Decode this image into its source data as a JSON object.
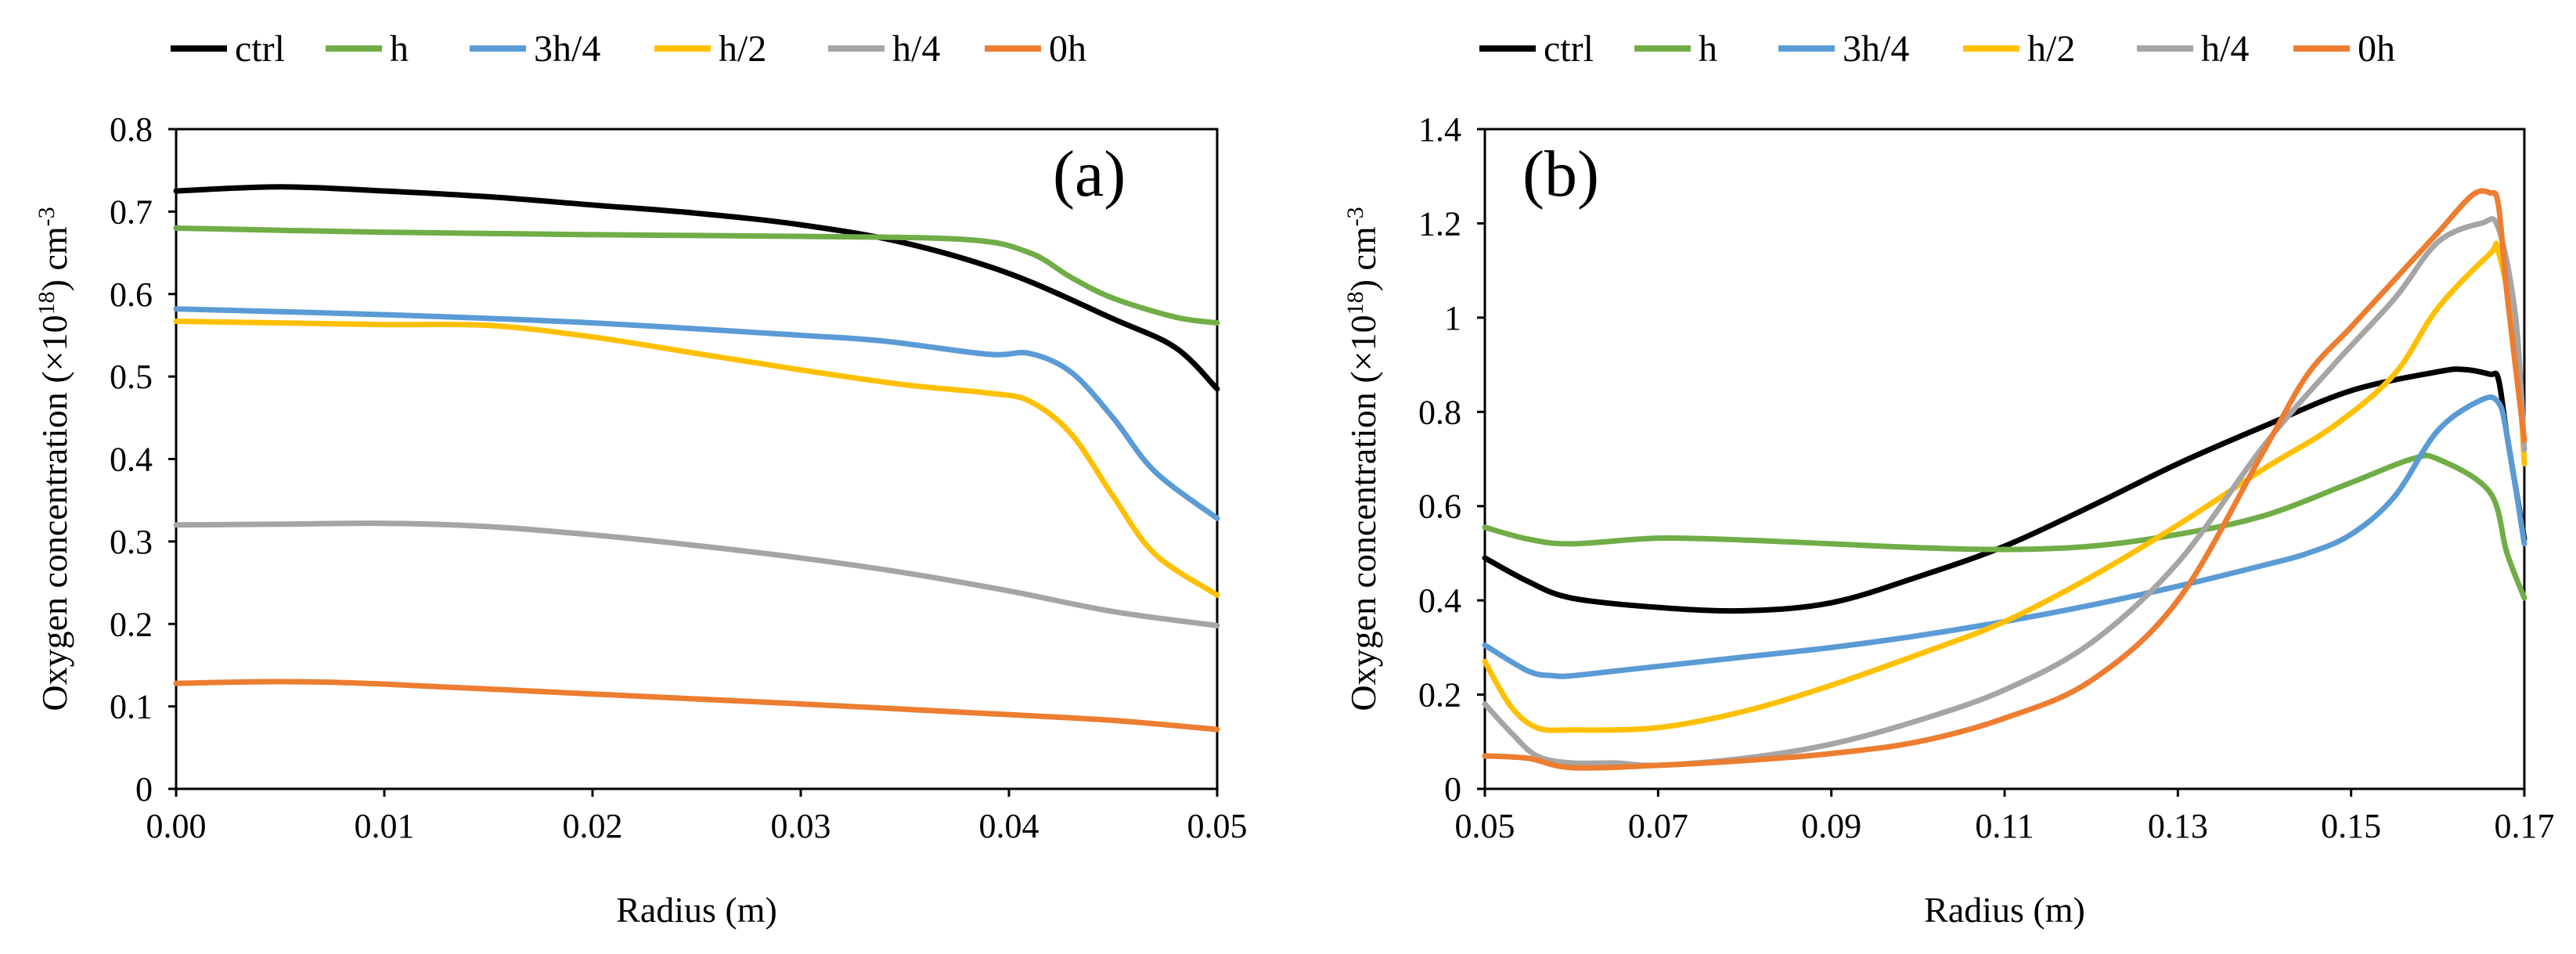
{
  "chart_data": [
    {
      "type": "line",
      "panel_label": "(a)",
      "xlabel": "Radius (m)",
      "ylabel_main": "Oxygen concentration (×10",
      "ylabel_sup": "18",
      "ylabel_rest": ") cm",
      "ylabel_unit_sup": "-3",
      "xlim": [
        0,
        0.05
      ],
      "ylim": [
        0,
        0.8
      ],
      "x_ticks": [
        0,
        0.01,
        0.02,
        0.03,
        0.04,
        0.05
      ],
      "x_tick_labels": [
        "0.00",
        "0.01",
        "0.02",
        "0.03",
        "0.04",
        "0.05"
      ],
      "y_ticks": [
        0,
        0.1,
        0.2,
        0.3,
        0.4,
        0.5,
        0.6,
        0.7,
        0.8
      ],
      "y_tick_labels": [
        "0",
        "0.1",
        "0.2",
        "0.3",
        "0.4",
        "0.5",
        "0.6",
        "0.7",
        "0.8"
      ],
      "legend_position": "top",
      "series": [
        {
          "name": "ctrl",
          "color": "#000000",
          "x": [
            0,
            0.005,
            0.01,
            0.015,
            0.02,
            0.025,
            0.03,
            0.035,
            0.04,
            0.045,
            0.048,
            0.05
          ],
          "y": [
            0.725,
            0.73,
            0.725,
            0.718,
            0.708,
            0.698,
            0.684,
            0.662,
            0.625,
            0.57,
            0.535,
            0.485
          ]
        },
        {
          "name": "h",
          "color": "#70AD47",
          "x": [
            0,
            0.01,
            0.02,
            0.03,
            0.038,
            0.041,
            0.043,
            0.045,
            0.048,
            0.05
          ],
          "y": [
            0.68,
            0.675,
            0.672,
            0.67,
            0.666,
            0.65,
            0.62,
            0.595,
            0.572,
            0.565
          ]
        },
        {
          "name": "3h/4",
          "color": "#5B9BD5",
          "x": [
            0,
            0.01,
            0.02,
            0.03,
            0.034,
            0.039,
            0.041,
            0.043,
            0.045,
            0.047,
            0.05
          ],
          "y": [
            0.582,
            0.575,
            0.565,
            0.55,
            0.543,
            0.527,
            0.528,
            0.505,
            0.45,
            0.385,
            0.328
          ]
        },
        {
          "name": "h/2",
          "color": "#FFC000",
          "x": [
            0,
            0.005,
            0.01,
            0.015,
            0.02,
            0.025,
            0.03,
            0.035,
            0.039,
            0.041,
            0.043,
            0.045,
            0.047,
            0.05
          ],
          "y": [
            0.567,
            0.565,
            0.563,
            0.562,
            0.548,
            0.528,
            0.508,
            0.49,
            0.48,
            0.47,
            0.43,
            0.355,
            0.285,
            0.235
          ]
        },
        {
          "name": "h/4",
          "color": "#A5A5A5",
          "x": [
            0,
            0.005,
            0.01,
            0.015,
            0.02,
            0.025,
            0.03,
            0.035,
            0.04,
            0.045,
            0.05
          ],
          "y": [
            0.32,
            0.321,
            0.322,
            0.318,
            0.308,
            0.295,
            0.28,
            0.262,
            0.24,
            0.215,
            0.198
          ]
        },
        {
          "name": "0h",
          "color": "#ED7D31",
          "x": [
            0,
            0.005,
            0.01,
            0.02,
            0.03,
            0.04,
            0.045,
            0.05
          ],
          "y": [
            0.128,
            0.13,
            0.127,
            0.115,
            0.103,
            0.09,
            0.083,
            0.072
          ]
        }
      ]
    },
    {
      "type": "line",
      "panel_label": "(b)",
      "xlabel": "Radius (m)",
      "ylabel_main": "Oxygen concentration (×10",
      "ylabel_sup": "18",
      "ylabel_rest": ") cm",
      "ylabel_unit_sup": "-3",
      "xlim": [
        0.05,
        0.17
      ],
      "ylim": [
        0,
        1.4
      ],
      "x_ticks": [
        0.05,
        0.07,
        0.09,
        0.11,
        0.13,
        0.15,
        0.17
      ],
      "x_tick_labels": [
        "0.05",
        "0.07",
        "0.09",
        "0.11",
        "0.13",
        "0.15",
        "0.17"
      ],
      "y_ticks": [
        0,
        0.2,
        0.4,
        0.6,
        0.8,
        1.0,
        1.2,
        1.4
      ],
      "y_tick_labels": [
        "0",
        "0.2",
        "0.4",
        "0.6",
        "0.8",
        "1",
        "1.2",
        "1.4"
      ],
      "legend_position": "top",
      "series": [
        {
          "name": "ctrl",
          "color": "#000000",
          "x": [
            0.05,
            0.055,
            0.06,
            0.07,
            0.08,
            0.09,
            0.1,
            0.11,
            0.12,
            0.13,
            0.14,
            0.15,
            0.16,
            0.163,
            0.166,
            0.167,
            0.168,
            0.17
          ],
          "y": [
            0.49,
            0.44,
            0.405,
            0.385,
            0.378,
            0.395,
            0.45,
            0.515,
            0.6,
            0.69,
            0.77,
            0.845,
            0.885,
            0.89,
            0.88,
            0.87,
            0.75,
            0.53
          ]
        },
        {
          "name": "h",
          "color": "#70AD47",
          "x": [
            0.05,
            0.055,
            0.06,
            0.07,
            0.08,
            0.09,
            0.1,
            0.11,
            0.12,
            0.13,
            0.14,
            0.15,
            0.157,
            0.16,
            0.166,
            0.168,
            0.17
          ],
          "y": [
            0.555,
            0.53,
            0.52,
            0.532,
            0.528,
            0.52,
            0.512,
            0.508,
            0.515,
            0.54,
            0.58,
            0.65,
            0.7,
            0.7,
            0.63,
            0.5,
            0.405
          ]
        },
        {
          "name": "3h/4",
          "color": "#5B9BD5",
          "x": [
            0.05,
            0.055,
            0.058,
            0.06,
            0.065,
            0.07,
            0.08,
            0.09,
            0.1,
            0.11,
            0.12,
            0.13,
            0.14,
            0.145,
            0.15,
            0.155,
            0.16,
            0.165,
            0.167,
            0.168,
            0.17
          ],
          "y": [
            0.305,
            0.25,
            0.24,
            0.24,
            0.25,
            0.26,
            0.28,
            0.3,
            0.325,
            0.355,
            0.39,
            0.43,
            0.475,
            0.5,
            0.54,
            0.62,
            0.76,
            0.825,
            0.82,
            0.75,
            0.52
          ]
        },
        {
          "name": "h/2",
          "color": "#FFC000",
          "x": [
            0.05,
            0.053,
            0.056,
            0.06,
            0.07,
            0.08,
            0.09,
            0.1,
            0.11,
            0.12,
            0.13,
            0.14,
            0.148,
            0.155,
            0.16,
            0.166,
            0.167,
            0.169,
            0.17
          ],
          "y": [
            0.27,
            0.175,
            0.13,
            0.125,
            0.13,
            0.165,
            0.22,
            0.285,
            0.355,
            0.45,
            0.56,
            0.68,
            0.77,
            0.88,
            1.02,
            1.135,
            1.14,
            0.95,
            0.69
          ]
        },
        {
          "name": "h/4",
          "color": "#A5A5A5",
          "x": [
            0.05,
            0.053,
            0.056,
            0.06,
            0.065,
            0.07,
            0.08,
            0.09,
            0.1,
            0.11,
            0.12,
            0.13,
            0.14,
            0.148,
            0.155,
            0.16,
            0.165,
            0.167,
            0.169,
            0.17
          ],
          "y": [
            0.18,
            0.12,
            0.07,
            0.055,
            0.055,
            0.05,
            0.065,
            0.095,
            0.145,
            0.21,
            0.31,
            0.48,
            0.73,
            0.9,
            1.04,
            1.16,
            1.2,
            1.19,
            1.0,
            0.72
          ]
        },
        {
          "name": "0h",
          "color": "#ED7D31",
          "x": [
            0.05,
            0.055,
            0.06,
            0.07,
            0.08,
            0.09,
            0.1,
            0.11,
            0.12,
            0.13,
            0.14,
            0.145,
            0.15,
            0.155,
            0.16,
            0.164,
            0.166,
            0.167,
            0.168,
            0.17
          ],
          "y": [
            0.07,
            0.065,
            0.045,
            0.05,
            0.06,
            0.075,
            0.1,
            0.15,
            0.23,
            0.4,
            0.72,
            0.88,
            0.98,
            1.08,
            1.18,
            1.26,
            1.265,
            1.24,
            1.05,
            0.74
          ]
        }
      ]
    }
  ]
}
